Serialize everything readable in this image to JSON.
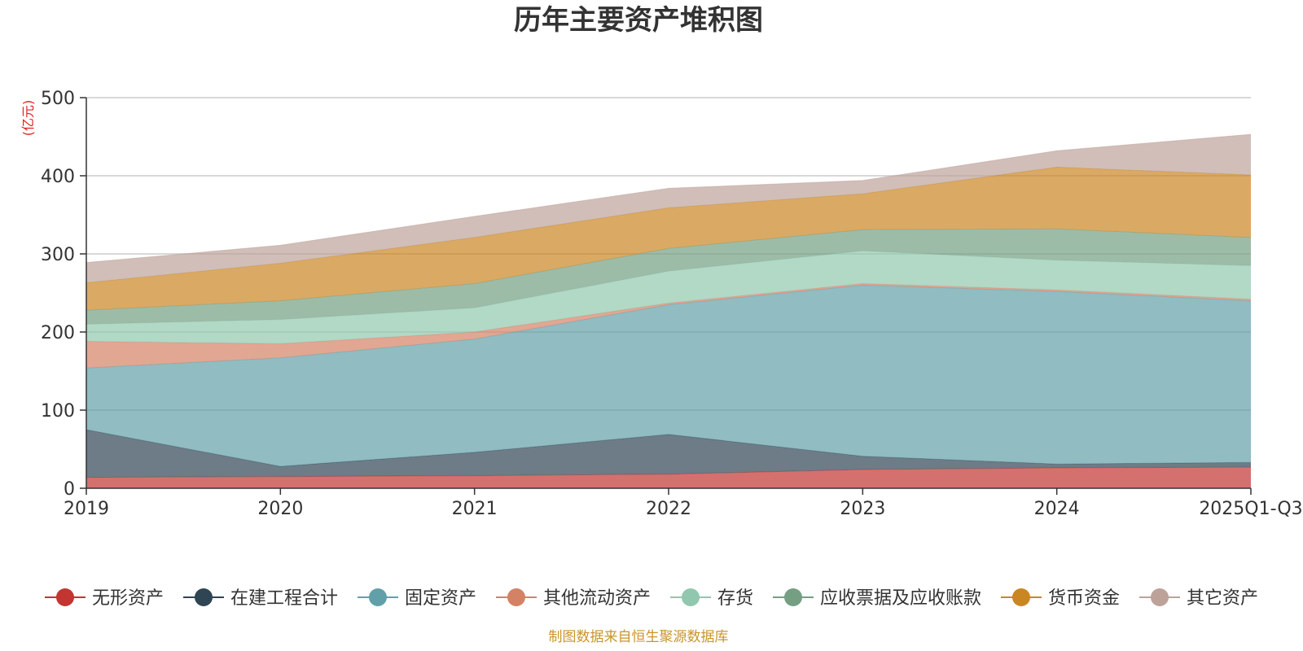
{
  "chart_data": {
    "type": "area",
    "stacked": true,
    "title": "历年主要资产堆积图",
    "ylabel": "(亿元)",
    "xlabel": "",
    "ylim": [
      0,
      500
    ],
    "yticks": [
      0,
      100,
      200,
      300,
      400,
      500
    ],
    "grid": true,
    "legend_position": "bottom",
    "categories": [
      "2019",
      "2020",
      "2021",
      "2022",
      "2023",
      "2024",
      "2025Q1-Q3"
    ],
    "series": [
      {
        "name": "无形资产",
        "color": "#c23531",
        "values": [
          14,
          15,
          16,
          18,
          24,
          26,
          27
        ]
      },
      {
        "name": "在建工程合计",
        "color": "#2f4554",
        "values": [
          61,
          13,
          30,
          51,
          17,
          5,
          6
        ]
      },
      {
        "name": "固定资产",
        "color": "#61a0a8",
        "values": [
          79,
          139,
          145,
          166,
          219,
          221,
          207
        ]
      },
      {
        "name": "其他流动资产",
        "color": "#d48265",
        "values": [
          34,
          18,
          9,
          2,
          2,
          2,
          2
        ]
      },
      {
        "name": "存货",
        "color": "#91c7ae",
        "values": [
          22,
          31,
          31,
          41,
          42,
          38,
          43
        ]
      },
      {
        "name": "应收票据及应收账款",
        "color": "#749f83",
        "values": [
          18,
          24,
          31,
          29,
          27,
          40,
          36
        ]
      },
      {
        "name": "货币资金",
        "color": "#ca8622",
        "values": [
          35,
          48,
          59,
          52,
          46,
          79,
          80
        ]
      },
      {
        "name": "其它资产",
        "color": "#bda29a",
        "values": [
          26,
          23,
          27,
          25,
          17,
          21,
          52
        ]
      }
    ]
  },
  "source_note": "制图数据来自恒生聚源数据库"
}
